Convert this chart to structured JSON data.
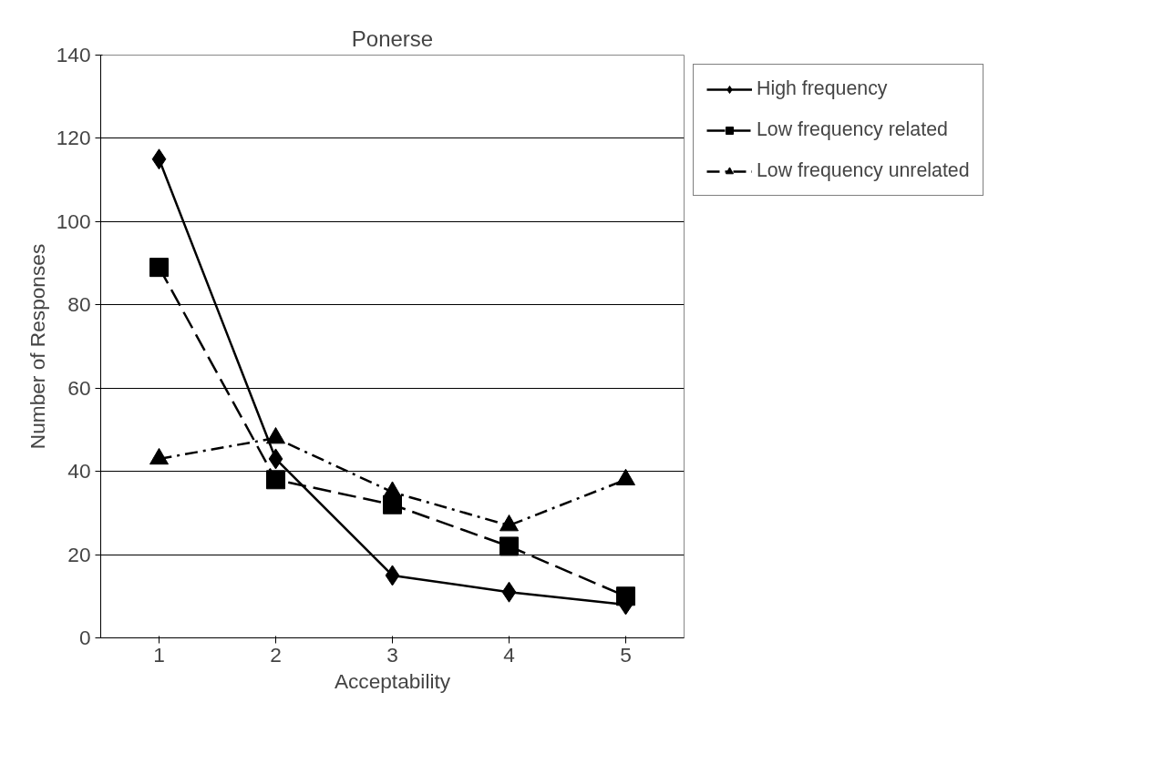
{
  "chart_data": {
    "type": "line",
    "title": "Ponerse",
    "xlabel": "Acceptability",
    "ylabel": "Number of Responses",
    "categories": [
      "1",
      "2",
      "3",
      "4",
      "5"
    ],
    "series": [
      {
        "name": "High frequency",
        "color": "#000000",
        "marker": "diamond",
        "line_style": "solid",
        "values": [
          115,
          43,
          15,
          11,
          8
        ]
      },
      {
        "name": "Low frequency related",
        "color": "#000000",
        "marker": "square",
        "line_style": "dashed",
        "values": [
          89,
          38,
          32,
          22,
          10
        ]
      },
      {
        "name": "Low frequency unrelated",
        "color": "#000000",
        "marker": "triangle",
        "line_style": "dashdot",
        "values": [
          43,
          48,
          35,
          27,
          38
        ]
      }
    ],
    "ylim": [
      0,
      140
    ],
    "yticks": [
      0,
      20,
      40,
      60,
      80,
      100,
      120,
      140
    ],
    "grid": "y",
    "legend": "top right"
  }
}
